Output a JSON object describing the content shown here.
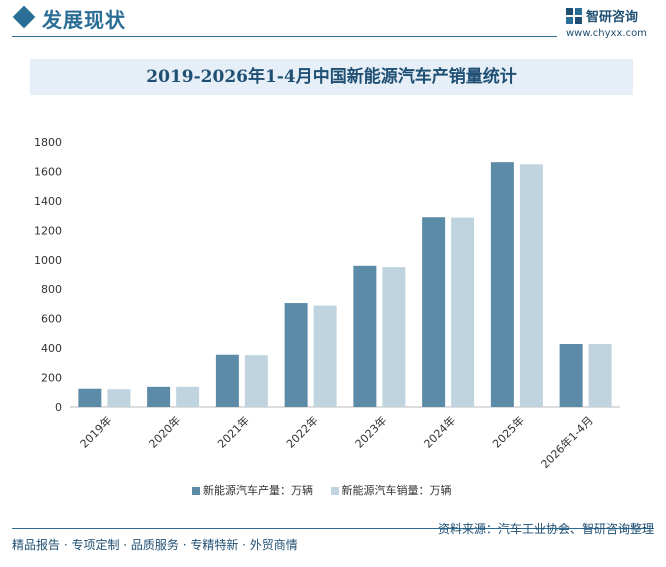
{
  "header": {
    "section_title": "发展现状",
    "logo_name": "智研咨询",
    "logo_url": "www.chyxx.com"
  },
  "chart_data": {
    "type": "bar",
    "title": "2019-2026年1-4月中国新能源汽车产销量统计",
    "categories": [
      "2019年",
      "2020年",
      "2021年",
      "2022年",
      "2023年",
      "2024年",
      "2025年",
      "2026年1-4月"
    ],
    "series": [
      {
        "name": "新能源汽车产量：万辆",
        "color": "#5b8ba6",
        "values": [
          124,
          137,
          355,
          706,
          959,
          1289,
          1663,
          428
        ]
      },
      {
        "name": "新能源汽车销量：万辆",
        "color": "#c0d4df",
        "values": [
          121,
          137,
          352,
          689,
          950,
          1287,
          1649,
          428
        ]
      }
    ],
    "yticks": [
      "0",
      "200",
      "400",
      "600",
      "800",
      "1000",
      "1200",
      "1400",
      "1600",
      "1800"
    ],
    "ylim": [
      0,
      1800
    ],
    "grid": false,
    "legend_position": "bottom"
  },
  "footer": {
    "left": "精品报告 · 专项定制 · 品质服务 · 专精特新 · 外贸商情",
    "source": "资料来源：汽车工业协会、智研咨询整理"
  }
}
